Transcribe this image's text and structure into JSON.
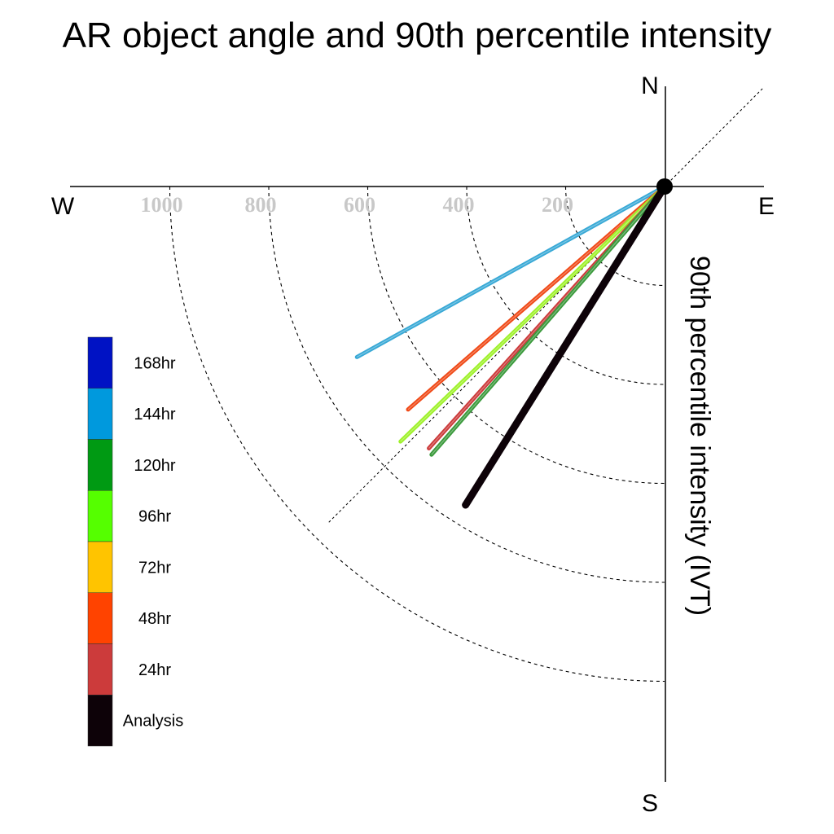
{
  "chart_data": {
    "type": "polar-vector",
    "title": "AR object angle and 90th percentile intensity",
    "radial_label": "90th percentile intensity (IVT)",
    "compass": {
      "north": "N",
      "south": "S",
      "east": "E",
      "west": "W"
    },
    "radial_ticks": [
      200,
      400,
      600,
      800,
      1000
    ],
    "radial_tick_labels": [
      "200",
      "400",
      "600",
      "800",
      "1000"
    ],
    "radial_max": 1200,
    "reference_angle_deg": 45,
    "grid": true,
    "legend": {
      "position": "bottom-left",
      "entries": [
        {
          "label": "168hr",
          "color": "#0012c4"
        },
        {
          "label": "144hr",
          "color": "#0099dd"
        },
        {
          "label": "120hr",
          "color": "#009a13"
        },
        {
          "label": "96hr",
          "color": "#55ff00"
        },
        {
          "label": "72hr",
          "color": "#ffc400"
        },
        {
          "label": "48hr",
          "color": "#ff4300"
        },
        {
          "label": "24hr",
          "color": "#cc3b3b"
        },
        {
          "label": "Analysis",
          "color": "#0d0208"
        }
      ]
    },
    "series": [
      {
        "name": "144hr",
        "color": "#39a9d6",
        "angle_deg": 29,
        "intensity": 711
      },
      {
        "name": "48hr",
        "color": "#f04a18",
        "angle_deg": 41,
        "intensity": 687
      },
      {
        "name": "96hr",
        "color": "#9ef12a",
        "angle_deg": 44,
        "intensity": 742
      },
      {
        "name": "24hr",
        "color": "#cc3b3b",
        "angle_deg": 48,
        "intensity": 712
      },
      {
        "name": "120hr",
        "color": "#3b9a3c",
        "angle_deg": 49,
        "intensity": 718
      },
      {
        "name": "Analysis",
        "color": "#0d0208",
        "angle_deg": 58,
        "intensity": 759
      }
    ]
  }
}
